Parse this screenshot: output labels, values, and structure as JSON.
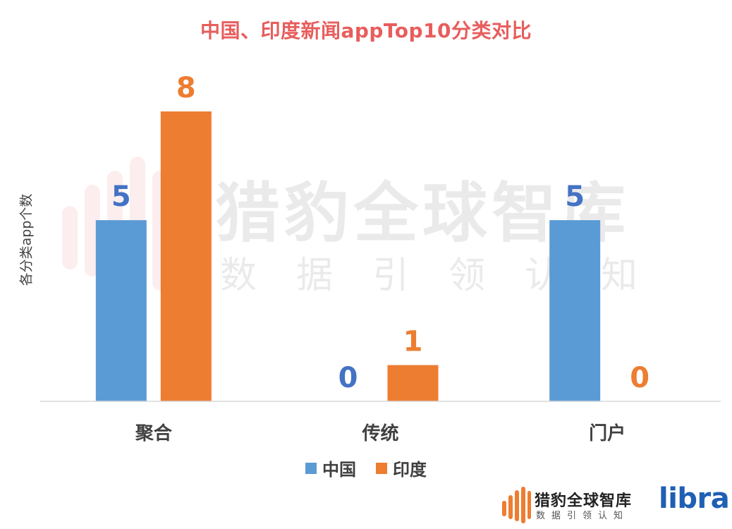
{
  "chart_data": {
    "type": "bar",
    "title": "中国、印度新闻appTop10分类对比",
    "xlabel": "",
    "ylabel": "各分类app个数",
    "categories": [
      "聚合",
      "传统",
      "门户"
    ],
    "series": [
      {
        "name": "中国",
        "values": [
          5,
          0,
          5
        ],
        "color": "#5b9bd5",
        "label_color": "#4472c4"
      },
      {
        "name": "印度",
        "values": [
          8,
          1,
          0
        ],
        "color": "#ed7d31",
        "label_color": "#ed7d31"
      }
    ],
    "ylim": [
      0,
      8
    ],
    "grid": false,
    "legend": "bottom-center",
    "data_labels": true
  },
  "watermark": {
    "main": "猎豹全球智库",
    "sub": "数据引领认知",
    "icon": "cheetah-bars-icon"
  },
  "brand": {
    "name": "猎豹全球智库",
    "sub": "数据引领认知",
    "partner": "libra",
    "icon": "cheetah-bars-icon",
    "icon_color": "#ed7d31"
  }
}
